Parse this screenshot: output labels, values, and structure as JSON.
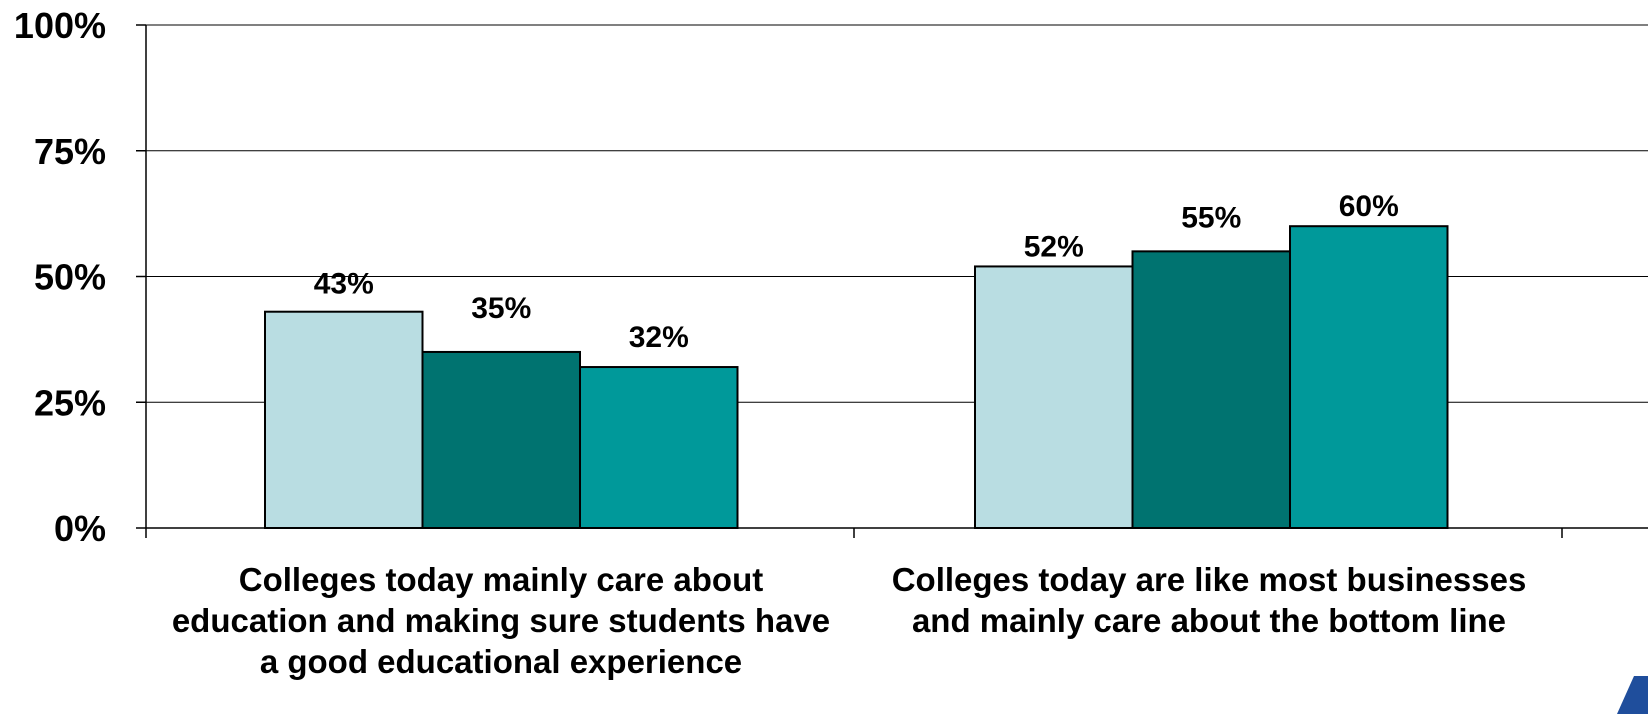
{
  "chart_data": {
    "type": "bar",
    "title": "",
    "xlabel": "",
    "ylabel": "",
    "ylim": [
      0,
      100
    ],
    "yticks": [
      "0%",
      "25%",
      "50%",
      "75%",
      "100%"
    ],
    "ytick_values": [
      0,
      25,
      50,
      75,
      100
    ],
    "grid": true,
    "legend": "none",
    "categories": [
      [
        "Colleges today mainly care about",
        "education and making sure students have",
        "a good educational experience"
      ],
      [
        "Colleges today are like most businesses",
        "and mainly care about the bottom line"
      ]
    ],
    "series": [
      {
        "values": [
          43,
          52
        ],
        "labels": [
          "43%",
          "52%"
        ],
        "color": "#b9dde2"
      },
      {
        "values": [
          35,
          55
        ],
        "labels": [
          "35%",
          "55%"
        ],
        "color": "#007370"
      },
      {
        "values": [
          32,
          60
        ],
        "labels": [
          "32%",
          "60%"
        ],
        "color": "#00999a"
      }
    ]
  },
  "logo": {
    "icon": "triangle-logo-icon",
    "color": "#1f4e9c"
  }
}
